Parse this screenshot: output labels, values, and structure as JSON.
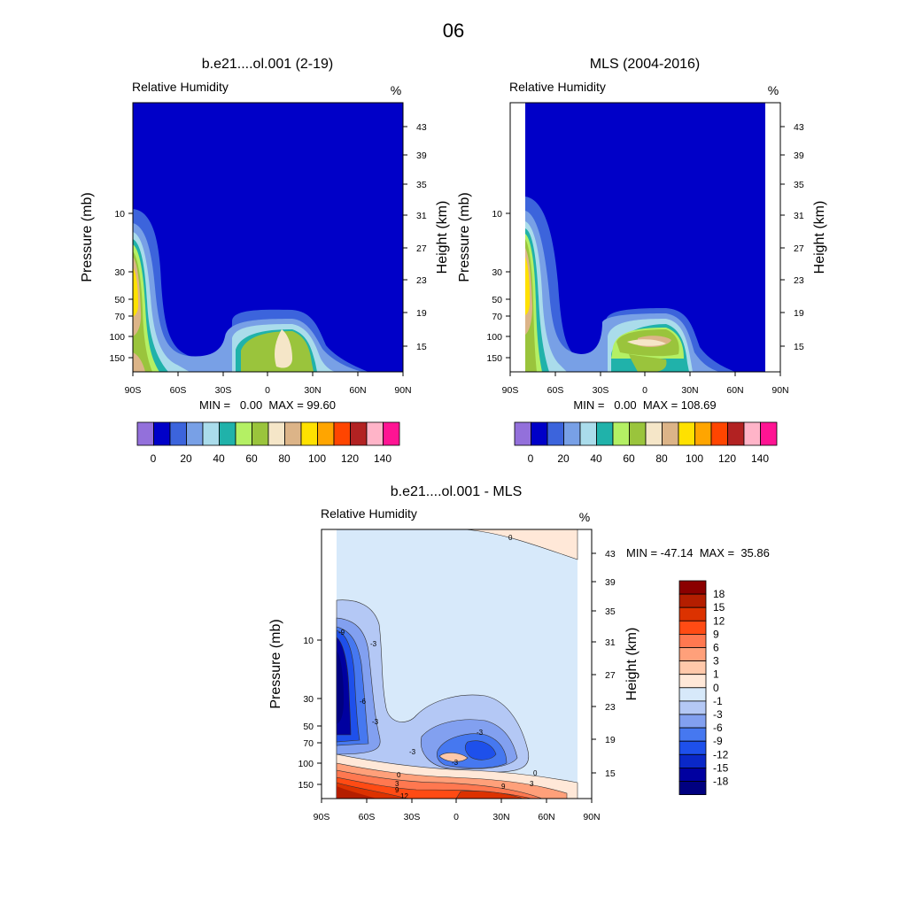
{
  "figure_title": "06",
  "chart_data": [
    {
      "type": "heatmap",
      "title": "b.e21....ol.001 (2-19)",
      "subtitle": "Relative Humidity",
      "units": "%",
      "ylabel": "Pressure (mb)",
      "ylabel_right": "Height (km)",
      "xticks": [
        "90S",
        "60S",
        "30S",
        "0",
        "30N",
        "60N",
        "90N"
      ],
      "yticks_left": [
        "10",
        "30",
        "50",
        "70",
        "100",
        "150"
      ],
      "yticks_right": [
        "43",
        "39",
        "35",
        "31",
        "27",
        "23",
        "19",
        "15"
      ],
      "stats": "MIN =   0.00  MAX = 99.60",
      "colorbar_labels": [
        "0",
        "20",
        "40",
        "60",
        "80",
        "100",
        "120",
        "140"
      ],
      "colorbar_colors": [
        "#9370db",
        "#0000c8",
        "#3c64dc",
        "#78a0e6",
        "#aadceb",
        "#20b2aa",
        "#b4f064",
        "#9ac43c",
        "#f5e6c8",
        "#dcb488",
        "#ffe100",
        "#ffa500",
        "#ff4500",
        "#b22222",
        "#ffb4c8",
        "#ff1493"
      ]
    },
    {
      "type": "heatmap",
      "title": "MLS (2004-2016)",
      "subtitle": "Relative Humidity",
      "units": "%",
      "ylabel": "Pressure (mb)",
      "ylabel_right": "Height (km)",
      "xticks": [
        "90S",
        "60S",
        "30S",
        "0",
        "30N",
        "60N",
        "90N"
      ],
      "yticks_left": [
        "10",
        "30",
        "50",
        "70",
        "100",
        "150"
      ],
      "yticks_right": [
        "43",
        "39",
        "35",
        "31",
        "27",
        "23",
        "19",
        "15"
      ],
      "stats": "MIN =   0.00  MAX = 108.69",
      "colorbar_labels": [
        "0",
        "20",
        "40",
        "60",
        "80",
        "100",
        "120",
        "140"
      ],
      "colorbar_colors": [
        "#9370db",
        "#0000c8",
        "#3c64dc",
        "#78a0e6",
        "#aadceb",
        "#20b2aa",
        "#b4f064",
        "#9ac43c",
        "#f5e6c8",
        "#dcb488",
        "#ffe100",
        "#ffa500",
        "#ff4500",
        "#b22222",
        "#ffb4c8",
        "#ff1493"
      ]
    },
    {
      "type": "heatmap",
      "title": "b.e21....ol.001 - MLS",
      "subtitle": "Relative Humidity",
      "units": "%",
      "ylabel": "Pressure (mb)",
      "ylabel_right": "Height (km)",
      "xticks": [
        "90S",
        "60S",
        "30S",
        "0",
        "30N",
        "60N",
        "90N"
      ],
      "yticks_left": [
        "10",
        "30",
        "50",
        "70",
        "100",
        "150"
      ],
      "yticks_right": [
        "43",
        "39",
        "35",
        "31",
        "27",
        "23",
        "19",
        "15"
      ],
      "stats": "MIN = -47.14  MAX =  35.86",
      "contour_labels": [
        "0",
        "-3",
        "-9",
        "-6",
        "-3",
        "-3",
        "-3",
        "-3",
        "0",
        "0",
        "3",
        "9",
        "12",
        "9",
        "3"
      ],
      "colorbar_labels": [
        "18",
        "15",
        "12",
        "9",
        "6",
        "3",
        "1",
        "0",
        "-1",
        "-3",
        "-6",
        "-9",
        "-12",
        "-15",
        "-18"
      ],
      "colorbar_colors": [
        "#8b0000",
        "#b41e00",
        "#dc3200",
        "#ff4b14",
        "#ff7850",
        "#ffa07a",
        "#ffc8aa",
        "#ffe8d8",
        "#d7e9fa",
        "#b4c8f5",
        "#82a0f0",
        "#4678f0",
        "#1e50eb",
        "#0a28c8",
        "#0000a0",
        "#000080"
      ]
    }
  ]
}
